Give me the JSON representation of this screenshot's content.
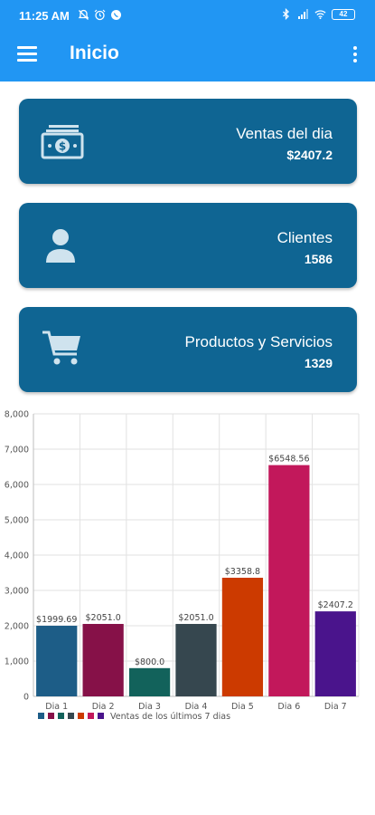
{
  "status_bar": {
    "time": "11:25 AM",
    "battery": "42"
  },
  "app_bar": {
    "title": "Inicio",
    "menu_icon": "hamburger-menu-icon",
    "overflow_icon": "more-vert-icon"
  },
  "cards": [
    {
      "label": "Ventas del dia",
      "value": "$2407.2",
      "icon": "money-icon"
    },
    {
      "label": "Clientes",
      "value": "1586",
      "icon": "person-icon"
    },
    {
      "label": "Productos y Servicios",
      "value": "1329",
      "icon": "cart-icon"
    }
  ],
  "colors": {
    "app_bar": "#2196F3",
    "card": "#0F6593"
  },
  "chart_data": {
    "type": "bar",
    "categories": [
      "Dia 1",
      "Dia 2",
      "Dia 3",
      "Dia 4",
      "Dia 5",
      "Dia 6",
      "Dia 7"
    ],
    "values": [
      1999.69,
      2051.0,
      800.0,
      2051.0,
      3358.8,
      6548.56,
      2407.2
    ],
    "data_labels": [
      "$1999.69",
      "$2051.0",
      "$800.0",
      "$2051.0",
      "$3358.8",
      "$6548.56",
      "$2407.2"
    ],
    "colors": [
      "#1D5D87",
      "#861148",
      "#12625B",
      "#36474F",
      "#CC3A00",
      "#C2185B",
      "#4A148C"
    ],
    "ylim": [
      0,
      8000
    ],
    "yticks": [
      "0",
      "1,000",
      "2,000",
      "3,000",
      "4,000",
      "5,000",
      "6,000",
      "7,000",
      "8,000"
    ],
    "legend": "Ventas de los últimos 7 dias",
    "legend_position": "bottom-left",
    "grid": true
  }
}
